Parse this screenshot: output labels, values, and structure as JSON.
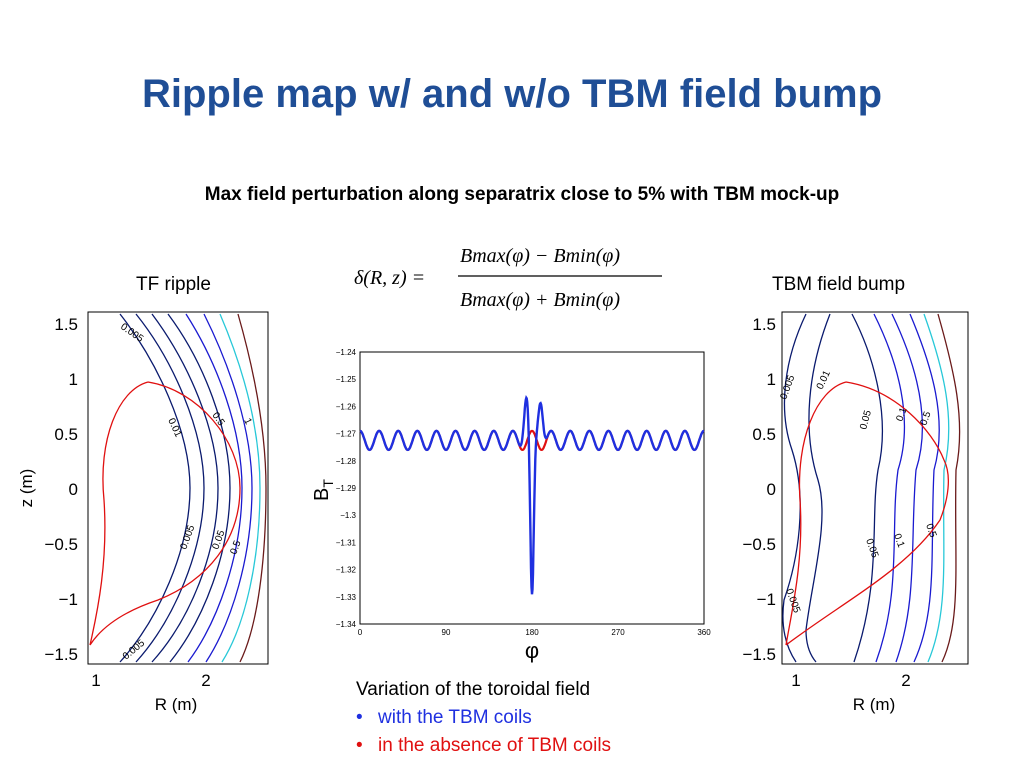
{
  "title": "Ripple map w/ and w/o TBM field bump",
  "subtitle": "Max field perturbation along separatrix close to 5% with TBM mock-up",
  "formula": {
    "lhs": "δ(R, z) =",
    "numerator": "Bmax(φ) − Bmin(φ)",
    "denominator": "Bmax(φ) + Bmin(φ)"
  },
  "left_panel": {
    "label": "TF ripple",
    "xlabel": "R (m)",
    "ylabel": "z (m)",
    "xticks": [
      "1",
      "2"
    ],
    "yticks": [
      "1.5",
      "1",
      "0.5",
      "0",
      "−0.5",
      "−1",
      "−1.5"
    ]
  },
  "right_panel": {
    "label": "TBM field bump",
    "xlabel": "R (m)",
    "ylabel": "",
    "xticks": [
      "1",
      "2"
    ],
    "yticks": [
      "1.5",
      "1",
      "0.5",
      "0",
      "−0.5",
      "−1",
      "−1.5"
    ]
  },
  "center_plot": {
    "ylabel_main": "B",
    "ylabel_sub": "T",
    "xlabel": "φ",
    "xticks": [
      "0",
      "90",
      "180",
      "270",
      "360"
    ],
    "yticks": [
      "−1.24",
      "−1.25",
      "−1.26",
      "−1.27",
      "−1.28",
      "−1.29",
      "−1.3",
      "−1.31",
      "−1.32",
      "−1.33",
      "−1.34"
    ]
  },
  "chart_data": {
    "type": "line",
    "xlabel": "φ",
    "ylabel": "BT",
    "xlim": [
      0,
      360
    ],
    "ylim": [
      -1.34,
      -1.24
    ],
    "series": [
      {
        "name": "with the TBM coils",
        "color": "#1f30e0",
        "description_points": {
          "baseline": -1.2725,
          "ripple_amplitude": 0.0035,
          "ripple_periods": 18,
          "bump_peaks": [
            [
              174,
              -1.2555
            ],
            [
              189,
              -1.2555
            ]
          ],
          "dip": [
            180,
            -1.3335
          ]
        }
      },
      {
        "name": "in the absence of TBM coils",
        "color": "#e01010",
        "description_points": {
          "baseline": -1.2725,
          "ripple_amplitude": 0.0035,
          "ripple_periods": 18
        }
      }
    ]
  },
  "caption": {
    "heading": "Variation of the toroidal field",
    "bullet": "•",
    "item1": "with the TBM coils",
    "item2": "in the absence of TBM coils"
  },
  "colors": {
    "title": "#1f4e96",
    "with_tbm": "#1f30e0",
    "without_tbm": "#e01010",
    "contour_dark": "#0a1a6e",
    "contour_cyan": "#28c8d8",
    "separatrix": "#e01010"
  }
}
